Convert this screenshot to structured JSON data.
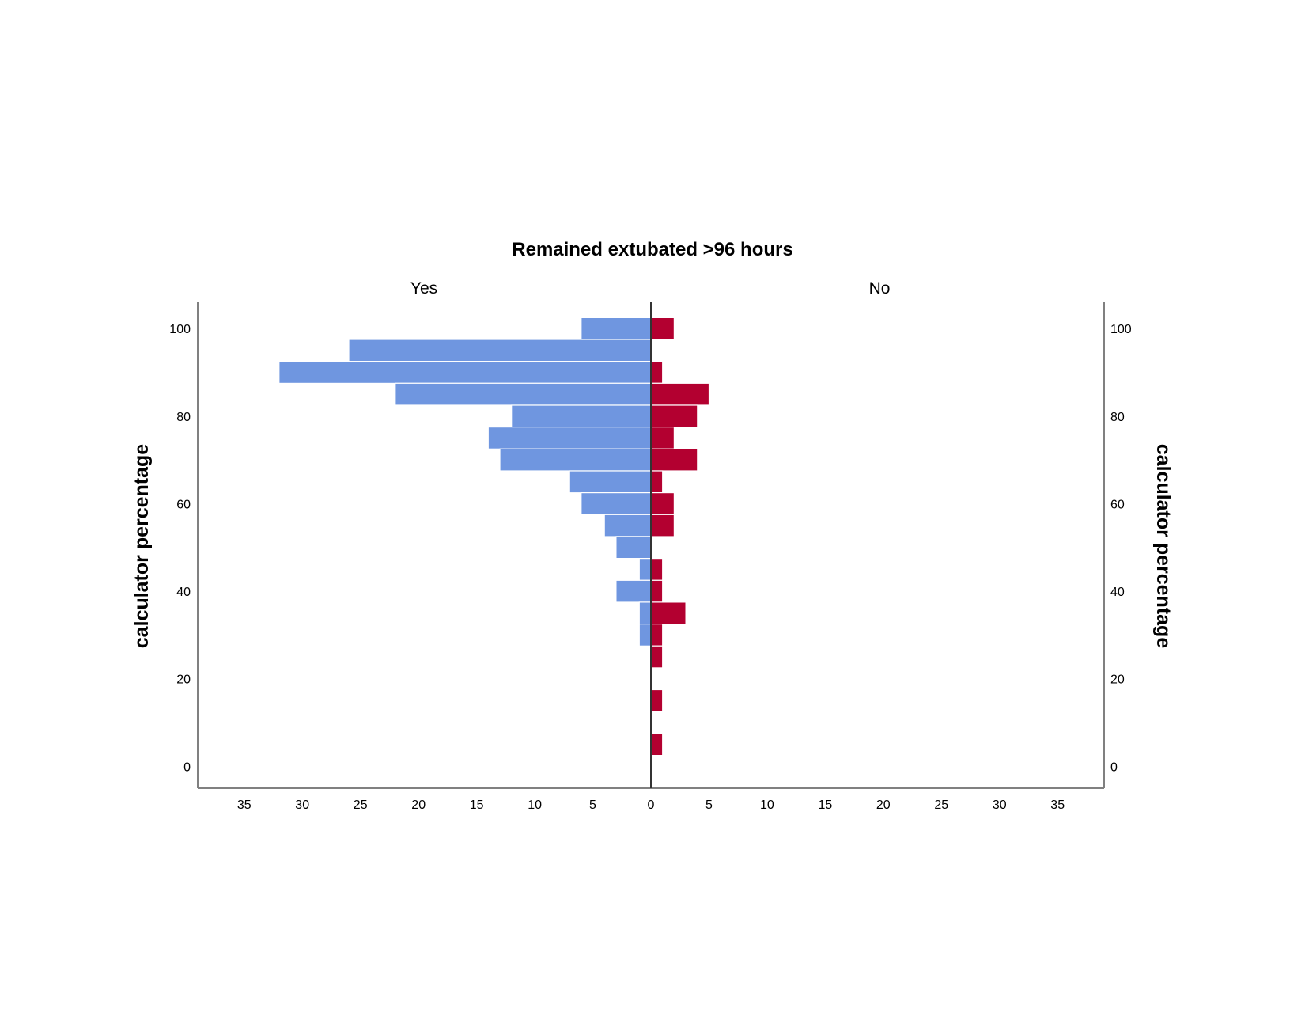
{
  "chart_data": {
    "type": "bar",
    "orientation": "horizontal-population-pyramid",
    "title": "Remained extubated >96 hours",
    "ylabel": "calculator percentage",
    "ylabel_right": "calculator percentage",
    "xlabel": "",
    "bin_width": 5,
    "ylim": [
      -5,
      106
    ],
    "xlim": [
      0,
      39
    ],
    "y_ticks": [
      0,
      20,
      40,
      60,
      80,
      100
    ],
    "x_ticks": [
      35,
      30,
      25,
      20,
      15,
      10,
      5,
      0,
      5,
      10,
      15,
      20,
      25,
      30,
      35
    ],
    "colors": {
      "yes": "#6f96e0",
      "no": "#b30030",
      "axis": "#808080",
      "center_line": "#333333"
    },
    "series": [
      {
        "name": "Yes",
        "side": "left",
        "bins": [
          {
            "y": 100,
            "value": 6
          },
          {
            "y": 95,
            "value": 26
          },
          {
            "y": 90,
            "value": 32
          },
          {
            "y": 85,
            "value": 22
          },
          {
            "y": 80,
            "value": 12
          },
          {
            "y": 75,
            "value": 14
          },
          {
            "y": 70,
            "value": 13
          },
          {
            "y": 65,
            "value": 7
          },
          {
            "y": 60,
            "value": 6
          },
          {
            "y": 55,
            "value": 4
          },
          {
            "y": 50,
            "value": 3
          },
          {
            "y": 45,
            "value": 1
          },
          {
            "y": 40,
            "value": 3
          },
          {
            "y": 35,
            "value": 1
          },
          {
            "y": 30,
            "value": 1
          }
        ]
      },
      {
        "name": "No",
        "side": "right",
        "bins": [
          {
            "y": 100,
            "value": 2
          },
          {
            "y": 90,
            "value": 1
          },
          {
            "y": 85,
            "value": 5
          },
          {
            "y": 80,
            "value": 4
          },
          {
            "y": 75,
            "value": 2
          },
          {
            "y": 70,
            "value": 4
          },
          {
            "y": 65,
            "value": 1
          },
          {
            "y": 60,
            "value": 2
          },
          {
            "y": 55,
            "value": 2
          },
          {
            "y": 45,
            "value": 1
          },
          {
            "y": 40,
            "value": 1
          },
          {
            "y": 35,
            "value": 3
          },
          {
            "y": 30,
            "value": 1
          },
          {
            "y": 25,
            "value": 1
          },
          {
            "y": 15,
            "value": 1
          },
          {
            "y": 5,
            "value": 1
          }
        ]
      }
    ]
  }
}
